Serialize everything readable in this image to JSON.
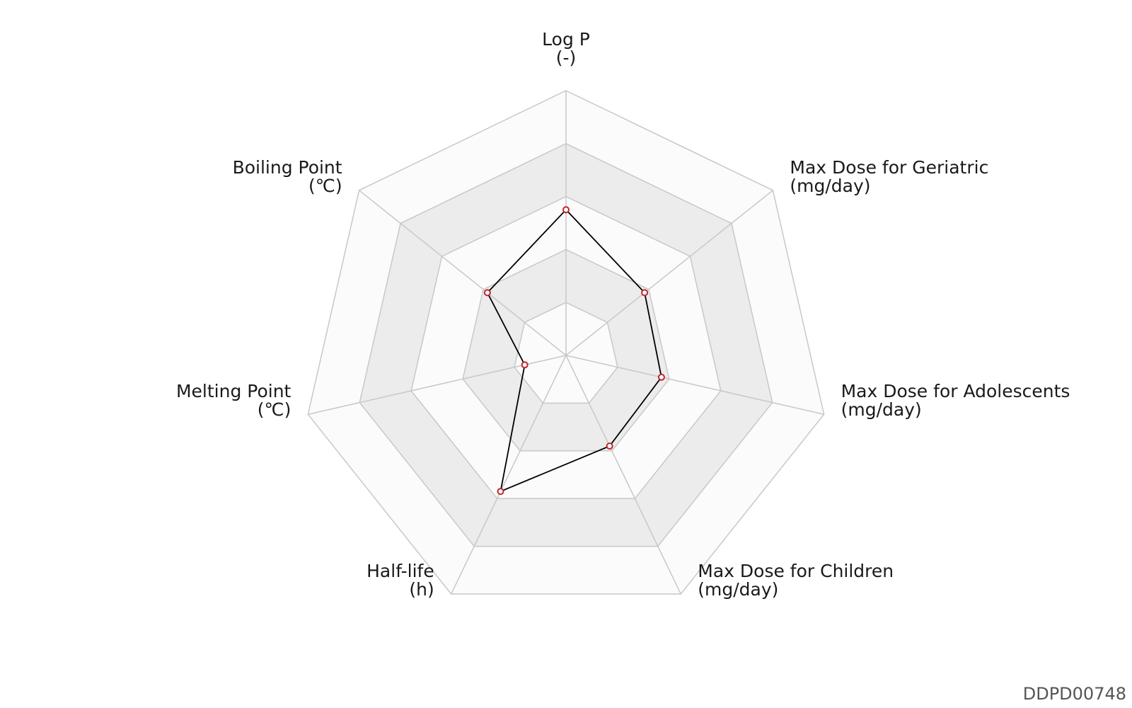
{
  "chart_data": {
    "type": "radar",
    "rings": 5,
    "axes": [
      {
        "name": "Log P",
        "unit": "(-)",
        "value": 0.55
      },
      {
        "name": "Max Dose for Geriatric",
        "unit": "(mg/day)",
        "value": 0.38
      },
      {
        "name": "Max Dose for Adolescents",
        "unit": "(mg/day)",
        "value": 0.37
      },
      {
        "name": "Max Dose for Children",
        "unit": "(mg/day)",
        "value": 0.38
      },
      {
        "name": "Half-life",
        "unit": "(h)",
        "value": 0.57
      },
      {
        "name": "Melting Point",
        "unit": "(℃)",
        "value": 0.16
      },
      {
        "name": "Boiling Point",
        "unit": "(℃)",
        "value": 0.38
      }
    ],
    "colors": {
      "grid_line": "#c8c8c8",
      "band_light": "#fbfbfb",
      "band_dark": "#ececec",
      "series_line": "#000000",
      "marker_stroke": "#c0272d",
      "marker_fill": "#ffffff"
    }
  },
  "footer": {
    "code": "DDPD00748"
  }
}
